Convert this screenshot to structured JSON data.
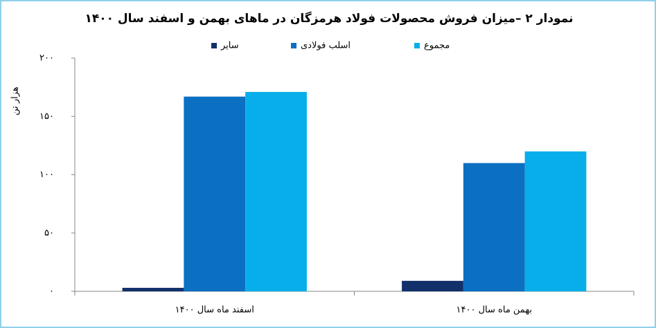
{
  "chart_data": {
    "type": "bar",
    "title": "نمودار ۲ –میزان فروش محصولات فولاد هرمزگان در ماهای بهمن و اسفند سال ۱۴۰۰",
    "y_label": "هزار تن",
    "categories": [
      "اسفند ماه سال ۱۴۰۰",
      "بهمن ماه سال ۱۴۰۰"
    ],
    "series": [
      {
        "name": "سایر",
        "color": "#12306a",
        "values": [
          3,
          9
        ]
      },
      {
        "name": "اسلب فولادی",
        "color": "#0b70c2",
        "values": [
          167,
          110
        ]
      },
      {
        "name": "مجموع",
        "color": "#08aeea",
        "values": [
          171,
          120
        ]
      }
    ],
    "ylim": [
      0,
      200
    ],
    "yticks": [
      {
        "value": 0,
        "label": "۰"
      },
      {
        "value": 50,
        "label": "۵۰"
      },
      {
        "value": 100,
        "label": "۱۰۰"
      },
      {
        "value": 150,
        "label": "۱۵۰"
      },
      {
        "value": 200,
        "label": "۲۰۰"
      }
    ],
    "grid": false,
    "legend": "top"
  }
}
